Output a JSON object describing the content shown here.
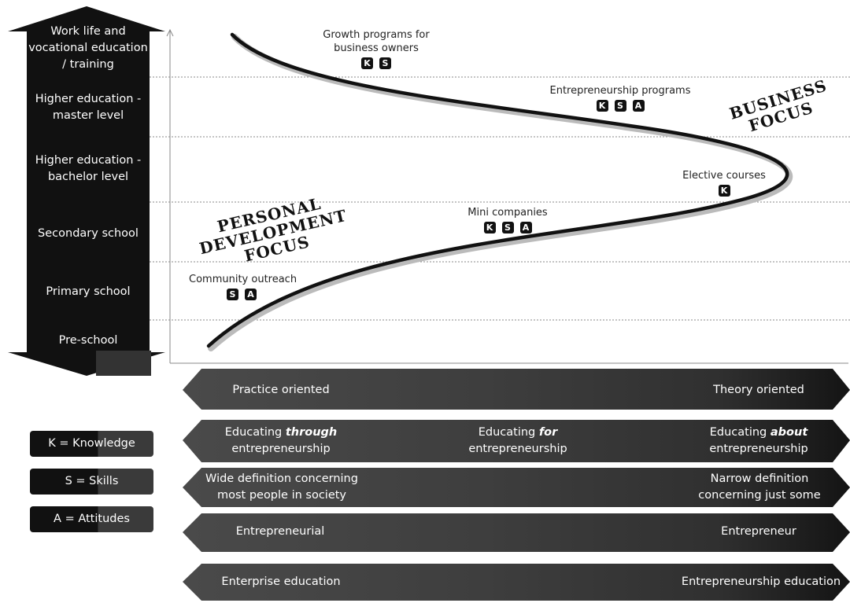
{
  "levels": [
    {
      "label": "Work life and vocational education / training"
    },
    {
      "label": "Higher education - master level"
    },
    {
      "label": "Higher education - bachelor level"
    },
    {
      "label": "Secondary school"
    },
    {
      "label": "Primary school"
    },
    {
      "label": "Pre-school"
    }
  ],
  "programs": [
    {
      "name": "Growth programs for business owners",
      "badges": [
        "K",
        "S"
      ]
    },
    {
      "name": "Entrepreneurship programs",
      "badges": [
        "K",
        "S",
        "A"
      ]
    },
    {
      "name": "Elective courses",
      "badges": [
        "K"
      ]
    },
    {
      "name": "Mini companies",
      "badges": [
        "K",
        "S",
        "A"
      ]
    },
    {
      "name": "Community outreach",
      "badges": [
        "S",
        "A"
      ]
    }
  ],
  "focus": {
    "personal": "PERSONAL DEVELOPMENT FOCUS",
    "business": "BUSINESS FOCUS"
  },
  "bands": [
    {
      "left": "Practice oriented",
      "middle": "",
      "right": "Theory oriented"
    },
    {
      "left_pre": "Educating ",
      "left_em": "through",
      "left_post": "entrepreneurship",
      "mid_pre": "Educating ",
      "mid_em": "for",
      "mid_post": "entrepreneurship",
      "right_pre": "Educating ",
      "right_em": "about",
      "right_post": "entrepreneurship"
    },
    {
      "left": "Wide definition concerning most people in society",
      "middle": "",
      "right": "Narrow definition concerning just some"
    },
    {
      "left": "Entrepreneurial",
      "middle": "",
      "right": "Entrepreneur"
    },
    {
      "left": "Enterprise education",
      "middle": "",
      "right": "Entrepreneurship education"
    }
  ],
  "legend": [
    {
      "text": "K = Knowledge"
    },
    {
      "text": "S = Skills"
    },
    {
      "text": "A = Attitudes"
    }
  ],
  "colors": {
    "dark": "#111111",
    "band_mid": "#3a3a3a",
    "band_light": "#555555"
  }
}
